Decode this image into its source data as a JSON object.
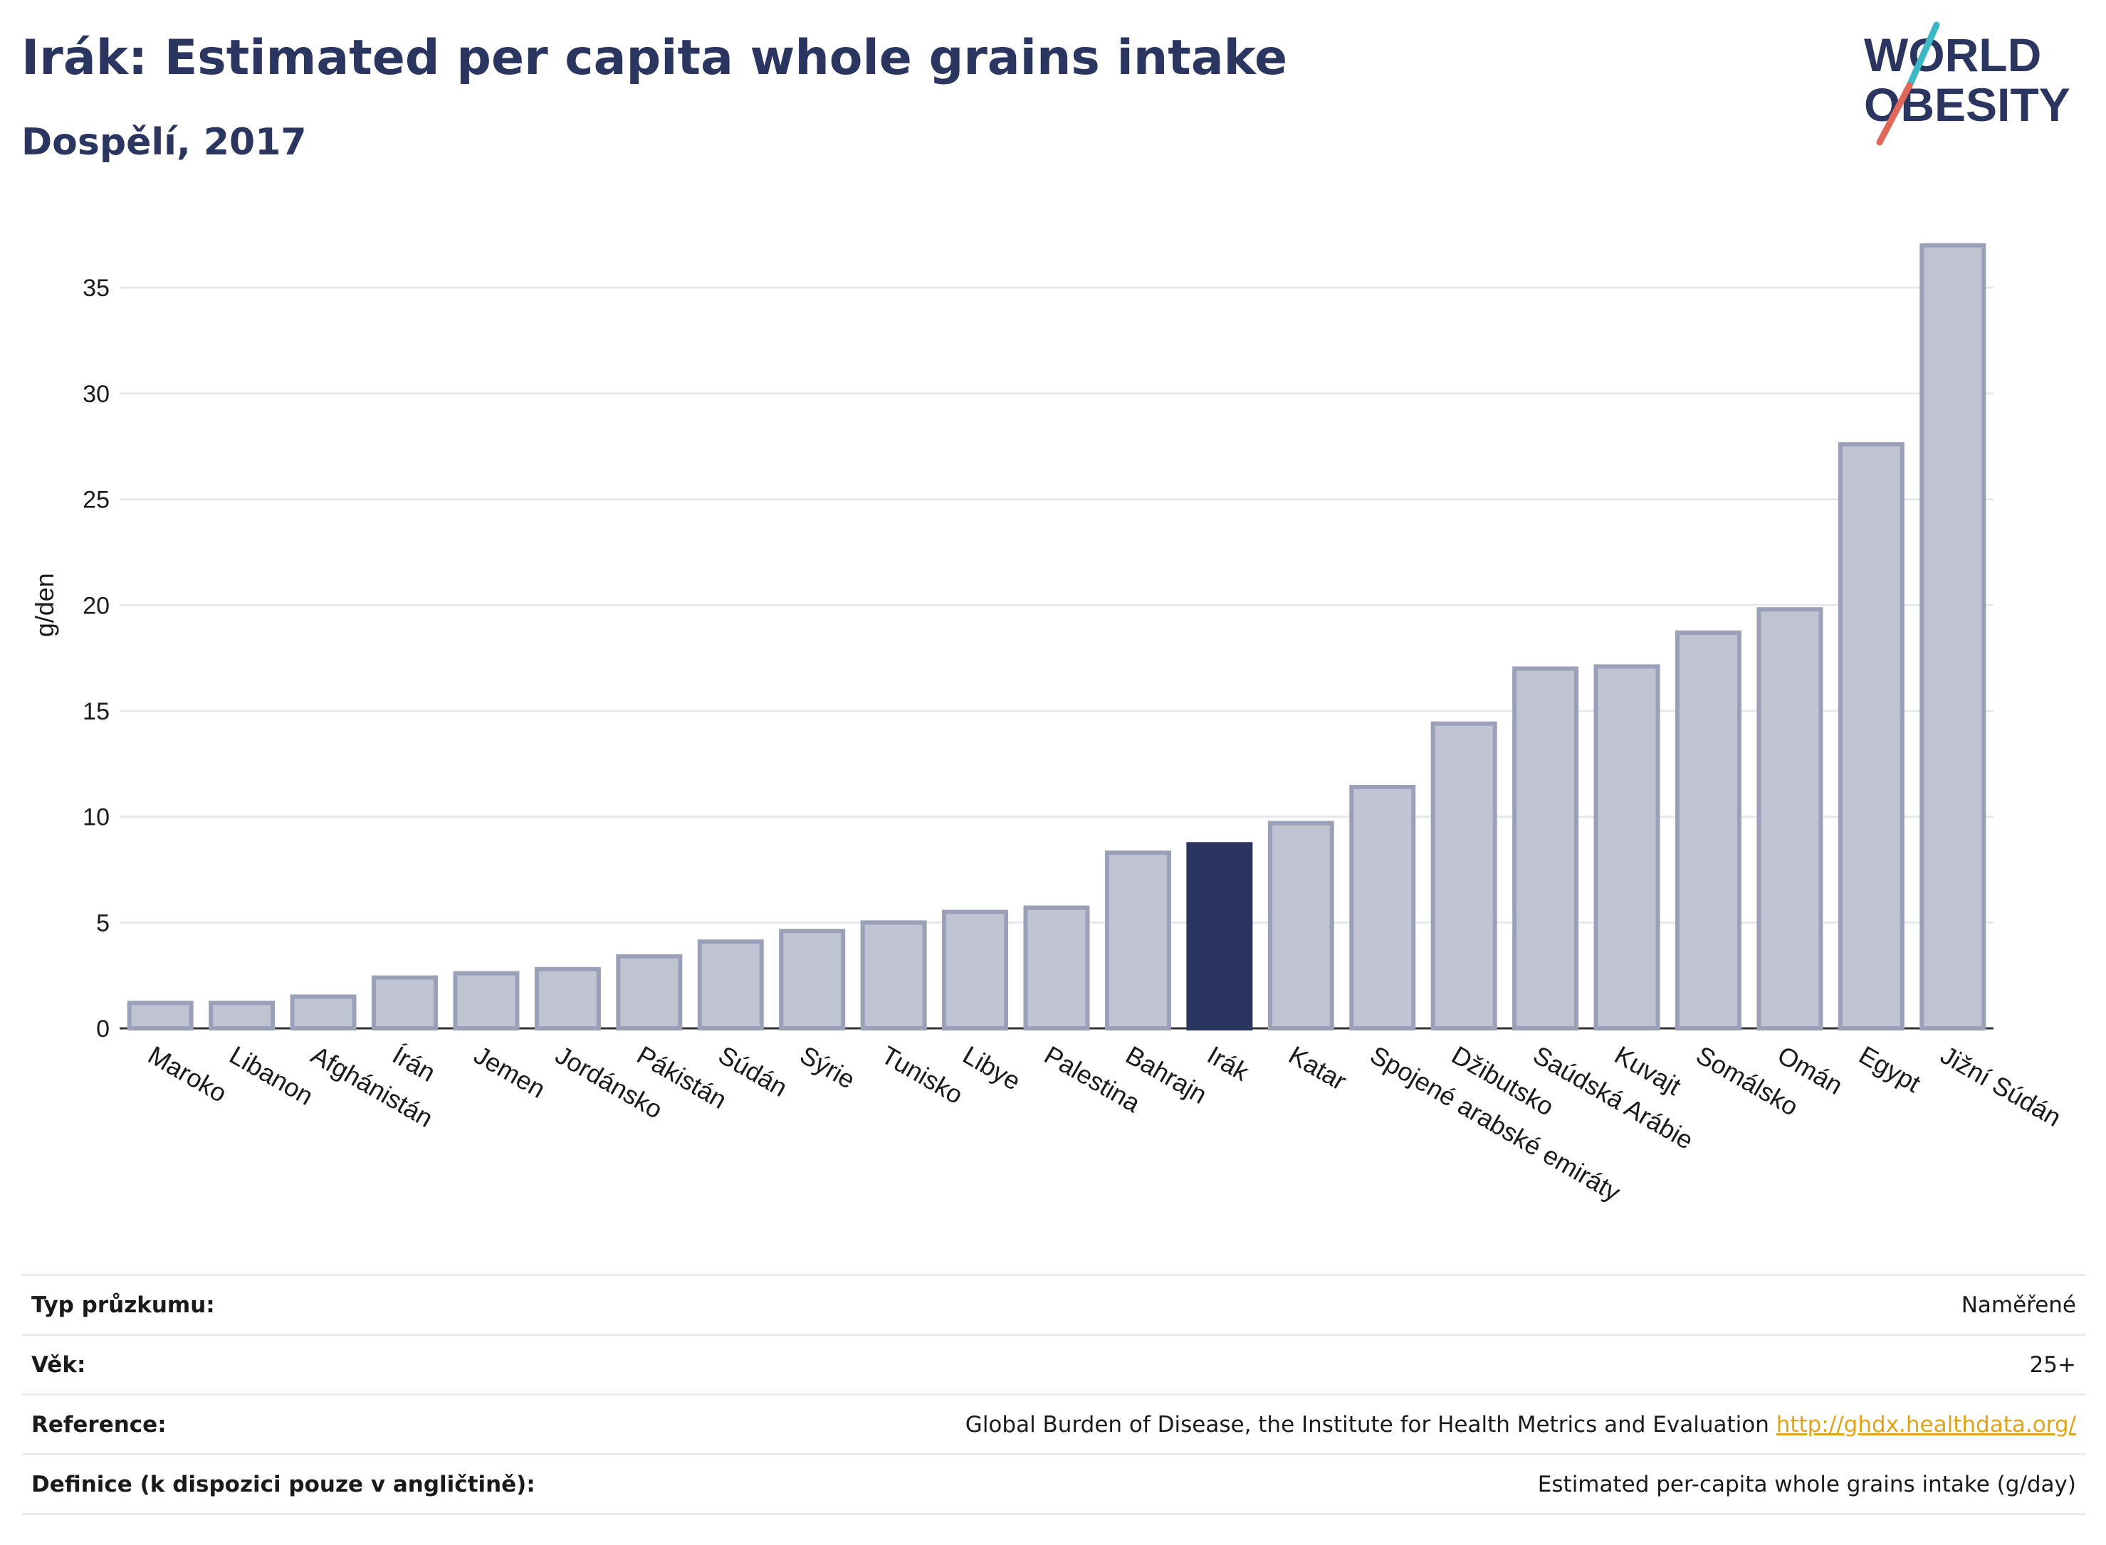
{
  "header": {
    "title": "Irák: Estimated per capita whole grains intake",
    "subtitle": "Dospělí, 2017"
  },
  "logo": {
    "line1": "WORLD",
    "line2": "OBESITY"
  },
  "colors": {
    "bar": "#bfc3d2",
    "bar_stroke": "#9aa0b8",
    "highlight": "#2a3560",
    "grid": "#e6e8ee",
    "axis": "#333333",
    "logo_teal": "#3bb8c4",
    "logo_red": "#e0685a",
    "link": "#e0a419"
  },
  "chart_data": {
    "type": "bar",
    "title": "Irák: Estimated per capita whole grains intake",
    "subtitle": "Dospělí, 2017",
    "xlabel": "",
    "ylabel": "g/den",
    "ylim": [
      0,
      38
    ],
    "yticks": [
      0,
      5,
      10,
      15,
      20,
      25,
      30,
      35
    ],
    "grid": true,
    "highlight": "Irák",
    "categories": [
      "Maroko",
      "Libanon",
      "Afghánistán",
      "Írán",
      "Jemen",
      "Jordánsko",
      "Pákistán",
      "Súdán",
      "Sýrie",
      "Tunisko",
      "Libye",
      "Palestina",
      "Bahrajn",
      "Irák",
      "Katar",
      "Spojené arabské emiráty",
      "Džibutsko",
      "Saúdská Arábie",
      "Kuvajt",
      "Somálsko",
      "Omán",
      "Egypt",
      "Jižní Súdán"
    ],
    "values": [
      1.2,
      1.2,
      1.5,
      2.4,
      2.6,
      2.8,
      3.4,
      4.1,
      4.6,
      5.0,
      5.5,
      5.7,
      8.3,
      8.7,
      9.7,
      11.4,
      14.4,
      17.0,
      17.1,
      18.7,
      19.8,
      27.6,
      37.0
    ]
  },
  "info": {
    "rows": [
      {
        "label": "Typ průzkumu:",
        "value": "Naměřené"
      },
      {
        "label": "Věk:",
        "value": "25+"
      },
      {
        "label": "Reference:",
        "value": "Global Burden of Disease, the Institute for Health Metrics and Evaluation",
        "link": "http://ghdx.healthdata.org/"
      },
      {
        "label": "Definice (k dispozici pouze v angličtině):",
        "value": "Estimated per-capita whole grains intake (g/day)"
      }
    ]
  }
}
